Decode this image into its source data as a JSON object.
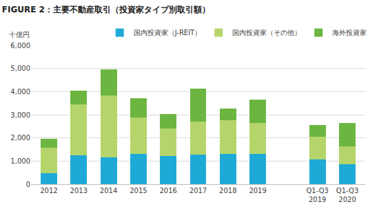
{
  "chart_data": {
    "type": "bar",
    "title": "FIGURE 2：主要不動産取引（投資家タイプ別取引額）",
    "y_label": "十億円",
    "categories": [
      "2012",
      "2013",
      "2014",
      "2015",
      "2016",
      "2017",
      "2018",
      "2019",
      null,
      "Q1-Q3 2019",
      "Q1-Q3 2020"
    ],
    "series": [
      {
        "name": "国内投資家（J-REIT）",
        "color": "#1fa9d6",
        "values": [
          480,
          1260,
          1160,
          1300,
          1210,
          1270,
          1310,
          1320,
          null,
          1060,
          860
        ]
      },
      {
        "name": "国内投資家（その他）",
        "color": "#b5d56a",
        "values": [
          1080,
          2200,
          2660,
          1580,
          1190,
          1440,
          1460,
          1320,
          null,
          980,
          780
        ]
      },
      {
        "name": "海外投資家",
        "color": "#6bb540",
        "values": [
          400,
          590,
          1140,
          820,
          640,
          1420,
          490,
          1020,
          null,
          500,
          990
        ]
      }
    ],
    "stacked": true,
    "ylim": [
      0,
      6000
    ],
    "yticks": [
      0,
      {
        "value": 1000,
        "label": "1,000"
      },
      {
        "value": 2000,
        "label": "2,000"
      },
      {
        "value": 3000,
        "label": "3,000"
      },
      {
        "value": 4000,
        "label": "4,000"
      },
      {
        "value": 5000,
        "label": "5,000"
      },
      {
        "value": 6000,
        "label": "6,000"
      }
    ],
    "grid": true,
    "legend": "top"
  }
}
